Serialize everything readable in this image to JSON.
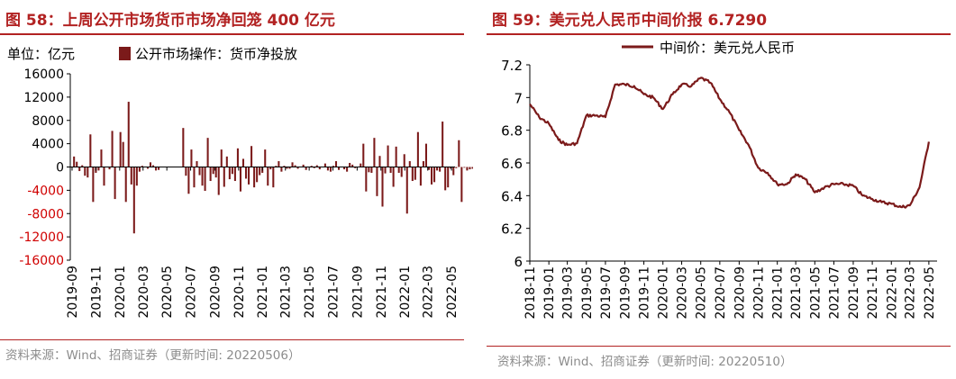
{
  "figures": [
    {
      "title": "图 58：上周公开市场货币市场净回笼 400 亿元",
      "source": "资料来源：Wind、招商证券（更新时间: 20220506）"
    },
    {
      "title": "图 59：美元兑人民币中间价报 6.7290",
      "source": "资料来源：Wind、招商证券（更新时间: 20220510）"
    }
  ],
  "colors": {
    "accent": "#b22222",
    "series": "#7b1a1a",
    "axis": "#000000",
    "source_text": "#8c8c8c"
  },
  "chart_data": [
    {
      "type": "bar",
      "unit_label": "单位：亿元",
      "legend": {
        "placement": "top",
        "entries": [
          "公开市场操作：货币净投放"
        ]
      },
      "series": [
        {
          "name": "公开市场操作：货币净投放",
          "x_start": "2019-09-06",
          "frequency": "weekly",
          "values": [
            1800,
            900,
            -700,
            300,
            -1500,
            -1800,
            5600,
            -6000,
            -1000,
            -600,
            3000,
            -3200,
            0,
            -400,
            6200,
            -5500,
            0,
            6000,
            4300,
            -6000,
            11200,
            -3000,
            -11400,
            -3200,
            -800,
            200,
            0,
            -300,
            800,
            300,
            -600,
            -500,
            0,
            0,
            0,
            0,
            0,
            0,
            0,
            0,
            6700,
            -1500,
            -4600,
            3000,
            -3500,
            1000,
            -1400,
            -3200,
            -4100,
            5000,
            -2400,
            -1200,
            -1800,
            -4800,
            3000,
            -3400,
            1800,
            -2100,
            -1200,
            -2400,
            3200,
            -4200,
            1400,
            -2000,
            -3000,
            3600,
            -3500,
            -2600,
            -1400,
            -1000,
            3000,
            -3200,
            -400,
            -3500,
            200,
            1000,
            -800,
            200,
            -300,
            -300,
            800,
            300,
            -300,
            0,
            400,
            -500,
            0,
            200,
            -200,
            300,
            -400,
            0,
            600,
            -600,
            -800,
            200,
            1000,
            -500,
            0,
            -400,
            -800,
            700,
            400,
            -200,
            0,
            600,
            4000,
            -4200,
            -900,
            -1000,
            5000,
            -5000,
            1900,
            -6800,
            -1100,
            3700,
            -1000,
            -3400,
            3500,
            -1000,
            -1700,
            2200,
            -8000,
            1000,
            -2400,
            -2200,
            6000,
            -3200,
            1000,
            4000,
            -500,
            -3000,
            -2600,
            -600,
            -800,
            7800,
            -4000,
            -3500,
            -300,
            -1400,
            -200,
            4600,
            -6000,
            -100,
            -600,
            -400,
            -300,
            -400
          ]
        }
      ],
      "x_tick_labels": [
        "2019-09",
        "2019-11",
        "2020-01",
        "2020-03",
        "2020-05",
        "2020-07",
        "2020-09",
        "2020-11",
        "2021-01",
        "2021-03",
        "2021-05",
        "2021-07",
        "2021-09",
        "2021-11",
        "2022-01",
        "2022-03",
        "2022-05"
      ],
      "y_tick_labels": [
        "16000",
        "12000",
        "8000",
        "4000",
        "0",
        "-4000",
        "-8000",
        "-12000",
        "-16000"
      ],
      "ylim": [
        -16000,
        16000
      ],
      "yticks": [
        16000,
        12000,
        8000,
        4000,
        0,
        -4000,
        -8000,
        -12000,
        -16000
      ],
      "grid": false
    },
    {
      "type": "line",
      "legend": {
        "placement": "top",
        "entries": [
          "中间价：美元兑人民币"
        ]
      },
      "series": [
        {
          "name": "中间价：美元兑人民币",
          "x": [
            "2018-11",
            "2018-12",
            "2019-01",
            "2019-02",
            "2019-03",
            "2019-04",
            "2019-05",
            "2019-06",
            "2019-07",
            "2019-08",
            "2019-09",
            "2019-10",
            "2019-11",
            "2019-12",
            "2020-01",
            "2020-02",
            "2020-03",
            "2020-04",
            "2020-05",
            "2020-06",
            "2020-07",
            "2020-08",
            "2020-09",
            "2020-10",
            "2020-11",
            "2020-12",
            "2021-01",
            "2021-02",
            "2021-03",
            "2021-04",
            "2021-05",
            "2021-06",
            "2021-07",
            "2021-08",
            "2021-09",
            "2021-10",
            "2021-11",
            "2021-12",
            "2022-01",
            "2022-02",
            "2022-03",
            "2022-04",
            "2022-05"
          ],
          "values": [
            6.96,
            6.88,
            6.84,
            6.74,
            6.71,
            6.72,
            6.89,
            6.89,
            6.88,
            7.08,
            7.08,
            7.07,
            7.02,
            7.0,
            6.93,
            7.02,
            7.08,
            7.07,
            7.12,
            7.09,
            6.99,
            6.91,
            6.8,
            6.71,
            6.57,
            6.54,
            6.47,
            6.47,
            6.53,
            6.5,
            6.42,
            6.45,
            6.47,
            6.47,
            6.46,
            6.4,
            6.38,
            6.36,
            6.35,
            6.33,
            6.34,
            6.45,
            6.73
          ]
        }
      ],
      "x_tick_labels": [
        "2018-11",
        "2019-01",
        "2019-03",
        "2019-05",
        "2019-07",
        "2019-09",
        "2019-11",
        "2020-01",
        "2020-03",
        "2020-05",
        "2020-07",
        "2020-09",
        "2020-11",
        "2021-01",
        "2021-03",
        "2021-05",
        "2021-07",
        "2021-09",
        "2021-11",
        "2022-01",
        "2022-03",
        "2022-05"
      ],
      "y_tick_labels": [
        "7.2",
        "7",
        "6.8",
        "6.6",
        "6.4",
        "6.2",
        "6"
      ],
      "ylim": [
        6,
        7.2
      ],
      "yticks": [
        7.2,
        7.0,
        6.8,
        6.6,
        6.4,
        6.2,
        6.0
      ],
      "grid": false
    }
  ]
}
